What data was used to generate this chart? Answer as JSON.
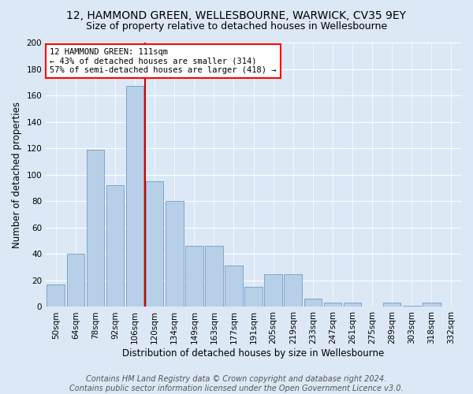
{
  "title": "12, HAMMOND GREEN, WELLESBOURNE, WARWICK, CV35 9EY",
  "subtitle": "Size of property relative to detached houses in Wellesbourne",
  "xlabel": "Distribution of detached houses by size in Wellesbourne",
  "ylabel": "Number of detached properties",
  "categories": [
    "50sqm",
    "64sqm",
    "78sqm",
    "92sqm",
    "106sqm",
    "120sqm",
    "134sqm",
    "149sqm",
    "163sqm",
    "177sqm",
    "191sqm",
    "205sqm",
    "219sqm",
    "233sqm",
    "247sqm",
    "261sqm",
    "275sqm",
    "289sqm",
    "303sqm",
    "318sqm",
    "332sqm"
  ],
  "values": [
    17,
    40,
    119,
    92,
    167,
    95,
    80,
    46,
    46,
    31,
    15,
    25,
    25,
    6,
    3,
    3,
    0,
    3,
    1,
    3,
    0
  ],
  "bar_color": "#b8cfe8",
  "bar_edge_color": "#6090c0",
  "highlight_index": 4,
  "highlight_color": "#cc0000",
  "ylim": [
    0,
    200
  ],
  "yticks": [
    0,
    20,
    40,
    60,
    80,
    100,
    120,
    140,
    160,
    180,
    200
  ],
  "annotation_line1": "12 HAMMOND GREEN: 111sqm",
  "annotation_line2": "← 43% of detached houses are smaller (314)",
  "annotation_line3": "57% of semi-detached houses are larger (418) →",
  "footer1": "Contains HM Land Registry data © Crown copyright and database right 2024.",
  "footer2": "Contains public sector information licensed under the Open Government Licence v3.0.",
  "bg_color": "#dce8f5",
  "plot_bg_color": "#dce8f5",
  "grid_color": "#ffffff",
  "title_fontsize": 10,
  "subtitle_fontsize": 9,
  "axis_label_fontsize": 8.5,
  "tick_fontsize": 7.5,
  "footer_fontsize": 7,
  "annotation_fontsize": 7.5
}
